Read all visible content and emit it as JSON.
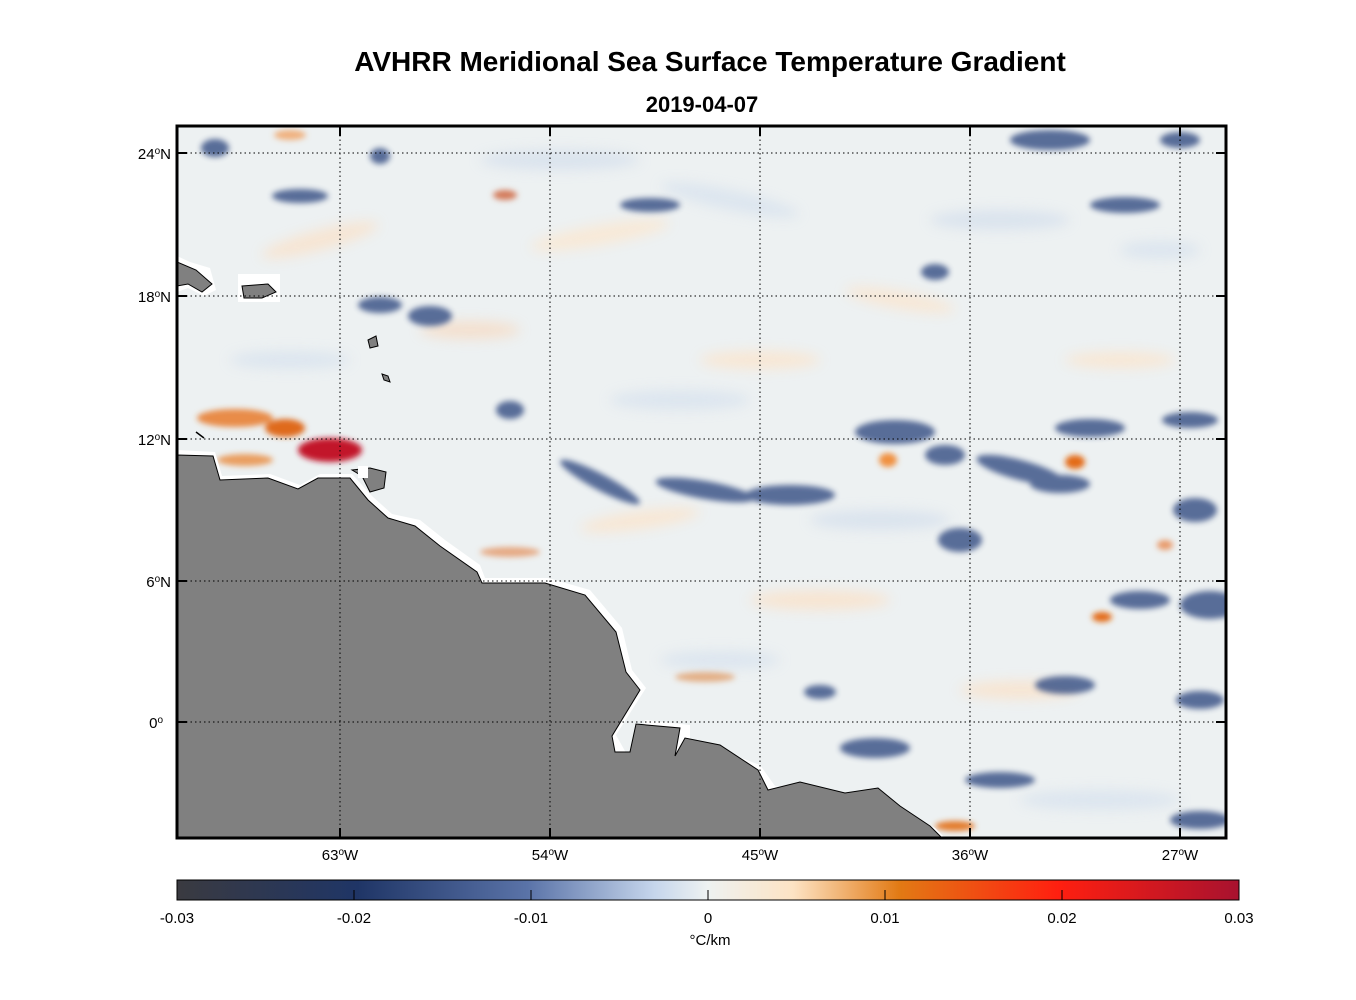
{
  "title": "AVHRR Meridional Sea Surface Temperature Gradient",
  "date": "2019-04-07",
  "map": {
    "lat_labels": [
      {
        "deg": "24",
        "hemi": "N",
        "lat": 24
      },
      {
        "deg": "18",
        "hemi": "N",
        "lat": 18
      },
      {
        "deg": "12",
        "hemi": "N",
        "lat": 12
      },
      {
        "deg": "6",
        "hemi": "N",
        "lat": 6
      },
      {
        "deg": "0",
        "hemi": "",
        "lat": 0
      }
    ],
    "lon_labels": [
      {
        "deg": "63",
        "hemi": "W",
        "lon": -63
      },
      {
        "deg": "54",
        "hemi": "W",
        "lon": -54
      },
      {
        "deg": "45",
        "hemi": "W",
        "lon": -45
      },
      {
        "deg": "36",
        "hemi": "W",
        "lon": -36
      },
      {
        "deg": "27",
        "hemi": "W",
        "lon": -27
      }
    ],
    "lon_range": [
      -70,
      -25.2
    ],
    "lat_range": [
      -4.9,
      25
    ]
  },
  "colorbar": {
    "ticks": [
      "-0.03",
      "-0.02",
      "-0.01",
      "0",
      "0.01",
      "0.02",
      "0.03"
    ],
    "units": "°C/km",
    "stops": [
      "#3a3a40",
      "#1f3566",
      "#5a73a8",
      "#c6d6ec",
      "#eef2f1",
      "#fde3c4",
      "#e27a14",
      "#ff1f10",
      "#a8122f"
    ]
  },
  "colors": {
    "land": "#808080",
    "ocean_base": "#edf1f2",
    "frame": "#000000"
  }
}
